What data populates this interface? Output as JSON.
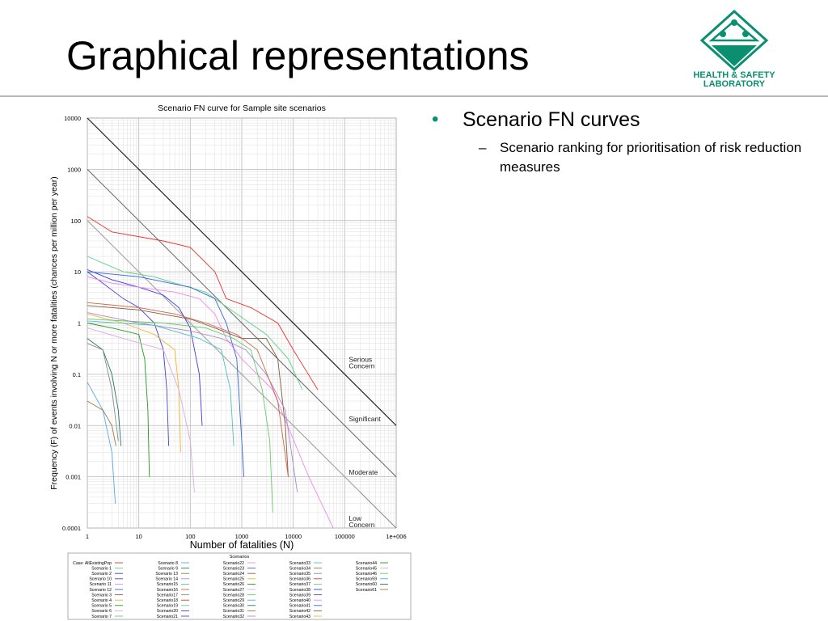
{
  "slide": {
    "title": "Graphical representations",
    "logo_text_1": "HEALTH & SAFETY",
    "logo_text_2": "LABORATORY",
    "logo_color": "#0a8f70",
    "bullets": [
      {
        "text": "Scenario FN curves",
        "subs": [
          "Scenario ranking for prioritisation of risk reduction measures"
        ]
      }
    ]
  },
  "chart_data": {
    "type": "line",
    "title": "Scenario FN curve for Sample site  scenarios",
    "xlabel": "Number of fatalities (N)",
    "ylabel": "Frequency (F) of events involving N or more fatalities (chances per million per year)",
    "x_scale": "log",
    "y_scale": "log",
    "xlim": [
      1,
      1000000
    ],
    "ylim": [
      0.0001,
      10000
    ],
    "x_ticks": [
      "1",
      "10",
      "100",
      "1000",
      "10000",
      "100000",
      "1e+006"
    ],
    "y_ticks": [
      "10000",
      "1000",
      "100",
      "10",
      "1",
      "0.1",
      "0.01",
      "0.001",
      "0.0001"
    ],
    "grid": true,
    "criterion_lines": [
      {
        "label": "Serious Concern",
        "points": [
          [
            1,
            10000
          ],
          [
            1000000,
            0.01
          ]
        ]
      },
      {
        "label": "Significant",
        "points": [
          [
            1,
            1000
          ],
          [
            1000000,
            0.001
          ]
        ]
      },
      {
        "label": "Moderate",
        "points": [
          [
            1,
            100
          ],
          [
            1000000,
            0.0001
          ]
        ]
      },
      {
        "label": "Low Concern",
        "points": [
          [
            1,
            100
          ],
          [
            1000000,
            0.0001
          ]
        ]
      }
    ],
    "legend_title": "Scenarios",
    "legend_entries": [
      "Case: AllExistingPop",
      "Scenario 1",
      "Scenario 2",
      "Scenario 10",
      "Scenario 11",
      "Scenario 12",
      "Scenario 3",
      "Scenario 4",
      "Scenario 5",
      "Scenario 6",
      "Scenario 7",
      "Scenario 8",
      "Scenario 9",
      "Scenario 13",
      "Scenario 14",
      "Scenario15",
      "Scenario16",
      "Scenario17",
      "Scenario18",
      "Scenario19",
      "Scenario20",
      "Scenario21",
      "Scenario22",
      "Scenario23",
      "Scenario24",
      "Scenario25",
      "Scenario26",
      "Scenario27",
      "Scenario28",
      "Scenario29",
      "Scenario30",
      "Scenario31",
      "Scenario32",
      "Scenario33",
      "Scenario34",
      "Scenario35",
      "Scenario36",
      "Scenario37",
      "Scenario38",
      "Scenario39",
      "Scenario40",
      "Scenario41",
      "Scenario42",
      "Scenario43",
      "Scenario44",
      "Scenario45",
      "Scenario46",
      "Scenario59",
      "Scenario60",
      "Scenario61"
    ],
    "series": [
      {
        "color": "#e8332a",
        "points": [
          [
            1,
            120
          ],
          [
            3,
            60
          ],
          [
            30,
            40
          ],
          [
            100,
            30
          ],
          [
            300,
            10
          ],
          [
            500,
            3
          ],
          [
            1500,
            2
          ],
          [
            5000,
            1
          ],
          [
            10000,
            0.3
          ],
          [
            30000,
            0.05
          ]
        ]
      },
      {
        "color": "#5bd08a",
        "points": [
          [
            1,
            20
          ],
          [
            5,
            10
          ],
          [
            20,
            8
          ],
          [
            50,
            6
          ],
          [
            200,
            4
          ],
          [
            800,
            1.5
          ],
          [
            3000,
            0.6
          ],
          [
            8000,
            0.2
          ],
          [
            15000,
            0.05
          ]
        ]
      },
      {
        "color": "#3a3ae0",
        "points": [
          [
            1,
            11
          ],
          [
            3,
            7
          ],
          [
            10,
            5
          ],
          [
            30,
            3.5
          ],
          [
            60,
            2
          ],
          [
            100,
            0.8
          ],
          [
            150,
            0.1
          ],
          [
            170,
            0.01
          ]
        ]
      },
      {
        "color": "#4444cc",
        "points": [
          [
            1,
            10
          ],
          [
            2,
            6
          ],
          [
            5,
            3
          ],
          [
            10,
            2
          ],
          [
            20,
            1
          ],
          [
            30,
            0.3
          ],
          [
            35,
            0.05
          ],
          [
            38,
            0.004
          ]
        ]
      },
      {
        "color": "#ee88ee",
        "points": [
          [
            1,
            8
          ],
          [
            3,
            6
          ],
          [
            10,
            5
          ],
          [
            50,
            4
          ],
          [
            150,
            3
          ],
          [
            300,
            1.5
          ],
          [
            500,
            0.5
          ],
          [
            1000,
            0.2
          ],
          [
            4000,
            0.05
          ],
          [
            20000,
            0.001
          ],
          [
            60000,
            0.0001
          ]
        ]
      },
      {
        "color": "#3366dd",
        "points": [
          [
            1,
            10
          ],
          [
            10,
            8
          ],
          [
            100,
            5
          ],
          [
            300,
            3
          ],
          [
            500,
            1
          ],
          [
            800,
            0.2
          ],
          [
            1000,
            0.005
          ],
          [
            1100,
            0.001
          ]
        ]
      },
      {
        "color": "#8a5a3a",
        "points": [
          [
            1,
            2.2
          ],
          [
            10,
            1.8
          ],
          [
            100,
            1.2
          ],
          [
            300,
            0.8
          ],
          [
            1000,
            0.5
          ],
          [
            3000,
            0.5
          ],
          [
            5000,
            0.2
          ],
          [
            7000,
            0.01
          ],
          [
            8000,
            0.001
          ]
        ]
      },
      {
        "color": "#f2b430",
        "points": [
          [
            1,
            1.5
          ],
          [
            5,
            1
          ],
          [
            20,
            0.6
          ],
          [
            50,
            0.3
          ],
          [
            60,
            0.05
          ],
          [
            65,
            0.003
          ]
        ]
      },
      {
        "color": "#229922",
        "points": [
          [
            1,
            1
          ],
          [
            3,
            0.8
          ],
          [
            10,
            0.6
          ],
          [
            13,
            0.2
          ],
          [
            15,
            0.02
          ],
          [
            16,
            0.001
          ]
        ]
      },
      {
        "color": "#ddaadd",
        "points": [
          [
            1,
            0.8
          ],
          [
            5,
            0.5
          ],
          [
            30,
            0.3
          ],
          [
            60,
            0.05
          ],
          [
            100,
            0.005
          ],
          [
            120,
            0.0005
          ]
        ]
      },
      {
        "color": "#66cc66",
        "points": [
          [
            1,
            1.2
          ],
          [
            30,
            1
          ],
          [
            200,
            0.8
          ],
          [
            700,
            0.5
          ],
          [
            1500,
            0.3
          ],
          [
            2500,
            0.05
          ],
          [
            3500,
            0.005
          ],
          [
            4000,
            0.0002
          ]
        ]
      },
      {
        "color": "#55aaee",
        "points": [
          [
            1,
            0.07
          ],
          [
            2,
            0.02
          ],
          [
            3,
            0.003
          ],
          [
            3.5,
            0.0003
          ]
        ]
      },
      {
        "color": "#227766",
        "points": [
          [
            1,
            0.5
          ],
          [
            2,
            0.3
          ],
          [
            3,
            0.1
          ],
          [
            4,
            0.02
          ],
          [
            4.5,
            0.004
          ]
        ]
      },
      {
        "color": "#997744",
        "points": [
          [
            1,
            0.03
          ],
          [
            2,
            0.02
          ],
          [
            3,
            0.01
          ],
          [
            3.6,
            0.004
          ]
        ]
      },
      {
        "color": "#aa88cc",
        "points": [
          [
            1,
            1.6
          ],
          [
            10,
            1
          ],
          [
            100,
            0.7
          ],
          [
            400,
            0.5
          ],
          [
            1200,
            0.3
          ],
          [
            3000,
            0.1
          ],
          [
            7000,
            0.02
          ],
          [
            12000,
            0.0005
          ]
        ]
      },
      {
        "color": "#55c0c0",
        "points": [
          [
            1,
            1.1
          ],
          [
            20,
            0.9
          ],
          [
            150,
            0.5
          ],
          [
            400,
            0.3
          ],
          [
            600,
            0.05
          ],
          [
            700,
            0.004
          ]
        ]
      },
      {
        "color": "#cc6644",
        "points": [
          [
            1,
            2.5
          ],
          [
            10,
            2
          ],
          [
            50,
            1.5
          ],
          [
            200,
            1
          ],
          [
            800,
            0.6
          ],
          [
            2000,
            0.3
          ],
          [
            5000,
            0.03
          ],
          [
            8000,
            0.001
          ]
        ]
      },
      {
        "color": "#888888",
        "points": [
          [
            1,
            0.4
          ],
          [
            2,
            0.3
          ],
          [
            3,
            0.05
          ],
          [
            4,
            0.005
          ]
        ]
      }
    ]
  }
}
